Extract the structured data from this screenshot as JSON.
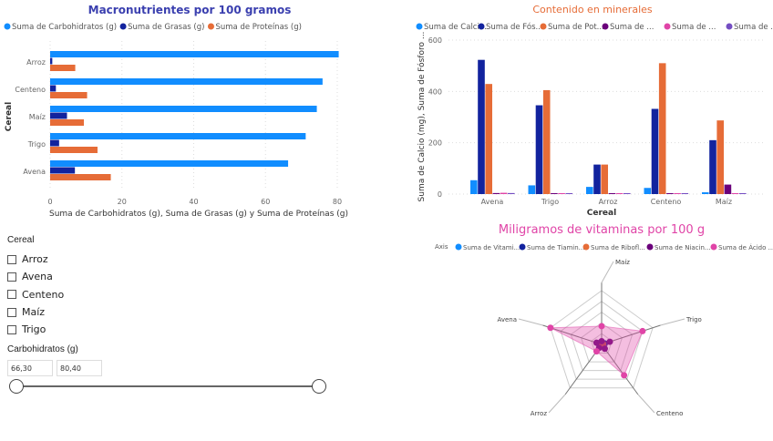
{
  "chart_data": [
    {
      "type": "bar",
      "orientation": "horizontal",
      "title": "Macronutrientes por 100 gramos",
      "categories": [
        "Arroz",
        "Centeno",
        "Maíz",
        "Trigo",
        "Avena"
      ],
      "series": [
        {
          "name": "Suma de Carbohidratos (g)",
          "color": "#118DFF",
          "values": [
            80.4,
            75.9,
            74.3,
            71.2,
            66.3
          ]
        },
        {
          "name": "Suma de Grasas (g)",
          "color": "#12239E",
          "values": [
            0.6,
            1.6,
            4.7,
            2.5,
            6.9
          ]
        },
        {
          "name": "Suma de Proteínas (g)",
          "color": "#E66C37",
          "values": [
            7.0,
            10.3,
            9.4,
            13.2,
            16.9
          ]
        }
      ],
      "xlabel": "Suma de Carbohidratos (g), Suma de Grasas (g) y Suma de Proteínas (g)",
      "ylabel": "Cereal",
      "xlim": [
        0,
        80
      ],
      "xticks": [
        "0",
        "20",
        "40",
        "60",
        "80"
      ],
      "grid": true,
      "legend": "top-left"
    },
    {
      "type": "bar",
      "title": "Contenido en minerales",
      "categories": [
        "Avena",
        "Trigo",
        "Arroz",
        "Centeno",
        "Maíz"
      ],
      "series": [
        {
          "name": "Suma de Calci...",
          "color": "#118DFF",
          "values": [
            54,
            34,
            28,
            24,
            7
          ]
        },
        {
          "name": "Suma de Fós...",
          "color": "#12239E",
          "values": [
            523,
            346,
            115,
            332,
            210
          ]
        },
        {
          "name": "Suma de Pot...",
          "color": "#E66C37",
          "values": [
            429,
            405,
            115,
            510,
            287
          ]
        },
        {
          "name": "Suma de ...",
          "color": "#6B007B",
          "values": [
            4,
            3,
            3,
            3,
            37
          ]
        },
        {
          "name": "Suma de ...",
          "color": "#E044A7",
          "values": [
            5,
            3,
            3,
            3,
            3
          ]
        },
        {
          "name": "Suma de ...",
          "color": "#744EC2",
          "values": [
            4,
            3,
            3,
            3,
            3
          ]
        }
      ],
      "xlabel": "Cereal",
      "ylabel": "Suma de Calcio (mg), Suma de Fósforo ...",
      "ylim": [
        0,
        600
      ],
      "yticks": [
        "0",
        "200",
        "400",
        "600"
      ],
      "grid": true,
      "legend": "top-left"
    },
    {
      "type": "radar",
      "title": "Miligramos de vitaminas por 100 g",
      "legend_title": "Axis",
      "categories": [
        "Maíz",
        "Trigo",
        "Centeno",
        "Arroz",
        "Avena"
      ],
      "series": [
        {
          "name": "Suma de Vitami...",
          "color": "#118DFF",
          "values": [
            0.02,
            0.02,
            0.02,
            0.02,
            0.02
          ]
        },
        {
          "name": "Suma de Tiamin...",
          "color": "#12239E",
          "values": [
            0.05,
            0.06,
            0.05,
            0.03,
            0.08
          ]
        },
        {
          "name": "Suma de Ribofl...",
          "color": "#E66C37",
          "values": [
            0.03,
            0.03,
            0.04,
            0.02,
            0.03
          ]
        },
        {
          "name": "Suma de Niacin...",
          "color": "#6B007B",
          "values": [
            0.06,
            0.16,
            0.1,
            0.08,
            0.1
          ]
        },
        {
          "name": "Suma de Ácido ...",
          "color": "#E044A7",
          "values": [
            0.34,
            0.8,
            0.71,
            0.16,
            1.0
          ]
        }
      ],
      "rlim": [
        0,
        1
      ],
      "legend": "top-left"
    }
  ],
  "slicer": {
    "title": "Cereal",
    "options": [
      "Arroz",
      "Avena",
      "Centeno",
      "Maíz",
      "Trigo"
    ]
  },
  "range": {
    "title": "Carbohidratos (g)",
    "min": "66,30",
    "max": "80,40"
  },
  "colors": {
    "title1": "#3A3FAF",
    "title2": "#E66C37",
    "title3": "#E044A7"
  }
}
